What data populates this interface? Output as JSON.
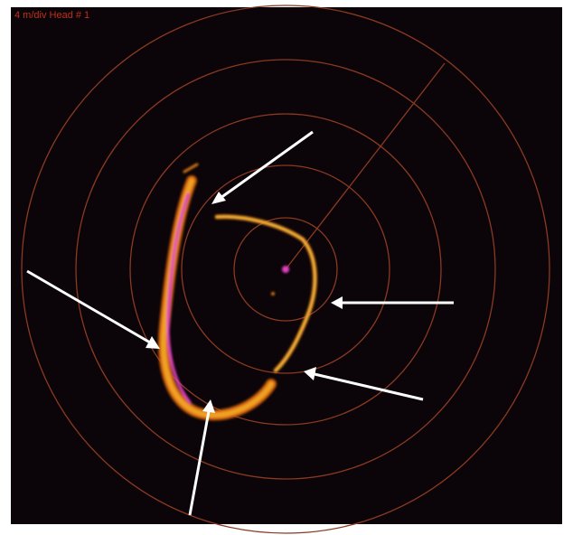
{
  "display_label": "4 m/div Head # 1"
}
